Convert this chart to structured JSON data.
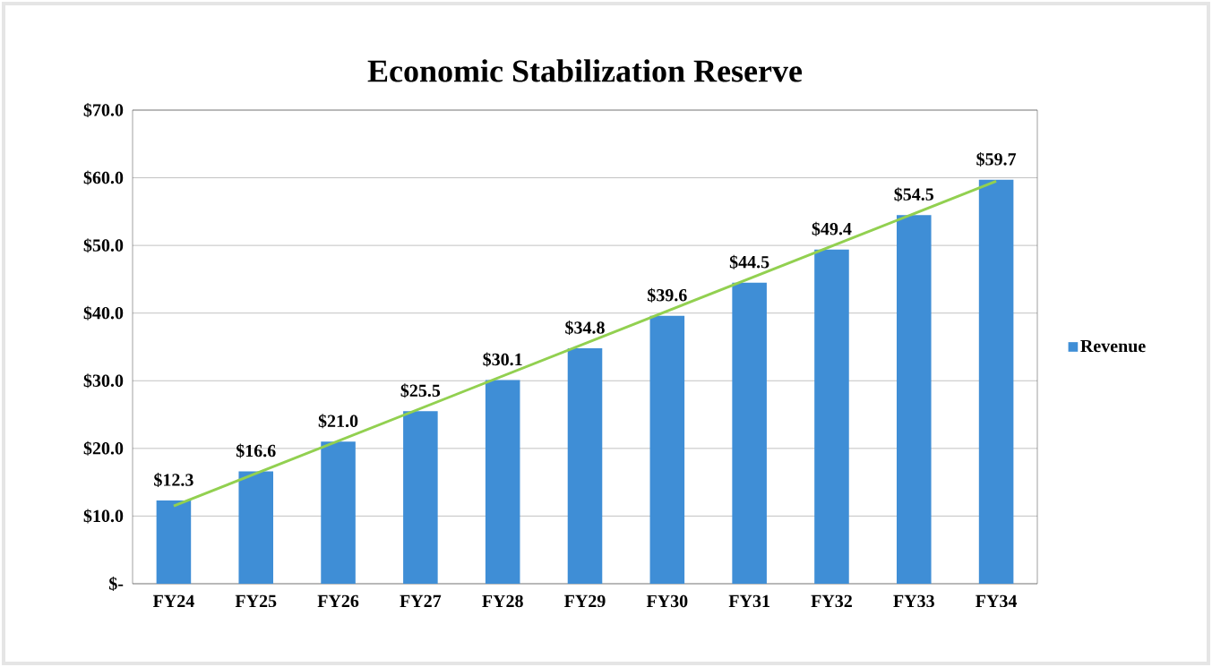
{
  "chart_data": {
    "type": "bar",
    "title": "Economic Stabilization Reserve",
    "categories": [
      "FY24",
      "FY25",
      "FY26",
      "FY27",
      "FY28",
      "FY29",
      "FY30",
      "FY31",
      "FY32",
      "FY33",
      "FY34"
    ],
    "series": [
      {
        "name": "Revenue",
        "color": "#3f8ed6",
        "values": [
          12.3,
          16.6,
          21.0,
          25.5,
          30.1,
          34.8,
          39.6,
          44.5,
          49.4,
          54.5,
          59.7
        ],
        "value_labels": [
          "$12.3",
          "$16.6",
          "$21.0",
          "$25.5",
          "$30.1",
          "$34.8",
          "$39.6",
          "$44.5",
          "$49.4",
          "$54.5",
          "$59.7"
        ]
      },
      {
        "type": "line",
        "color": "#92d050",
        "values": [
          11.5,
          null,
          null,
          null,
          null,
          null,
          null,
          null,
          null,
          null,
          59.5
        ]
      }
    ],
    "ylim": [
      0,
      70
    ],
    "yticks": [
      {
        "value": 0,
        "label": "$-"
      },
      {
        "value": 10,
        "label": "$10.0"
      },
      {
        "value": 20,
        "label": "$20.0"
      },
      {
        "value": 30,
        "label": "$30.0"
      },
      {
        "value": 40,
        "label": "$40.0"
      },
      {
        "value": 50,
        "label": "$50.0"
      },
      {
        "value": 60,
        "label": "$60.0"
      },
      {
        "value": 70,
        "label": "$70.0"
      }
    ],
    "grid": "y",
    "legend": "right"
  }
}
